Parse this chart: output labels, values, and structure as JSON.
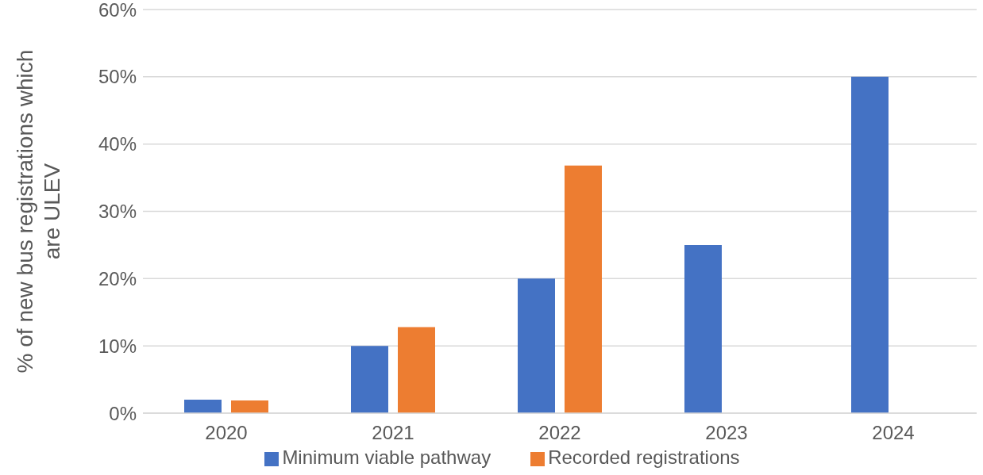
{
  "chart_data": {
    "type": "bar",
    "ylabel": "% of new bus registrations which are ULEV",
    "categories": [
      "2020",
      "2021",
      "2022",
      "2023",
      "2024"
    ],
    "series": [
      {
        "name": "Minimum viable pathway",
        "color": "#4472c4",
        "values": [
          2,
          10,
          20,
          25,
          50
        ]
      },
      {
        "name": "Recorded registrations",
        "color": "#ed7d31",
        "values": [
          1.9,
          12.8,
          36.8,
          null,
          null
        ]
      }
    ],
    "ylim": [
      0,
      60
    ],
    "yticks": [
      {
        "value": 0,
        "label": "0%"
      },
      {
        "value": 10,
        "label": "10%"
      },
      {
        "value": 20,
        "label": "20%"
      },
      {
        "value": 30,
        "label": "30%"
      },
      {
        "value": 40,
        "label": "40%"
      },
      {
        "value": 50,
        "label": "50%"
      },
      {
        "value": 60,
        "label": "60%"
      }
    ],
    "grid": "y",
    "legend": "bottom"
  }
}
